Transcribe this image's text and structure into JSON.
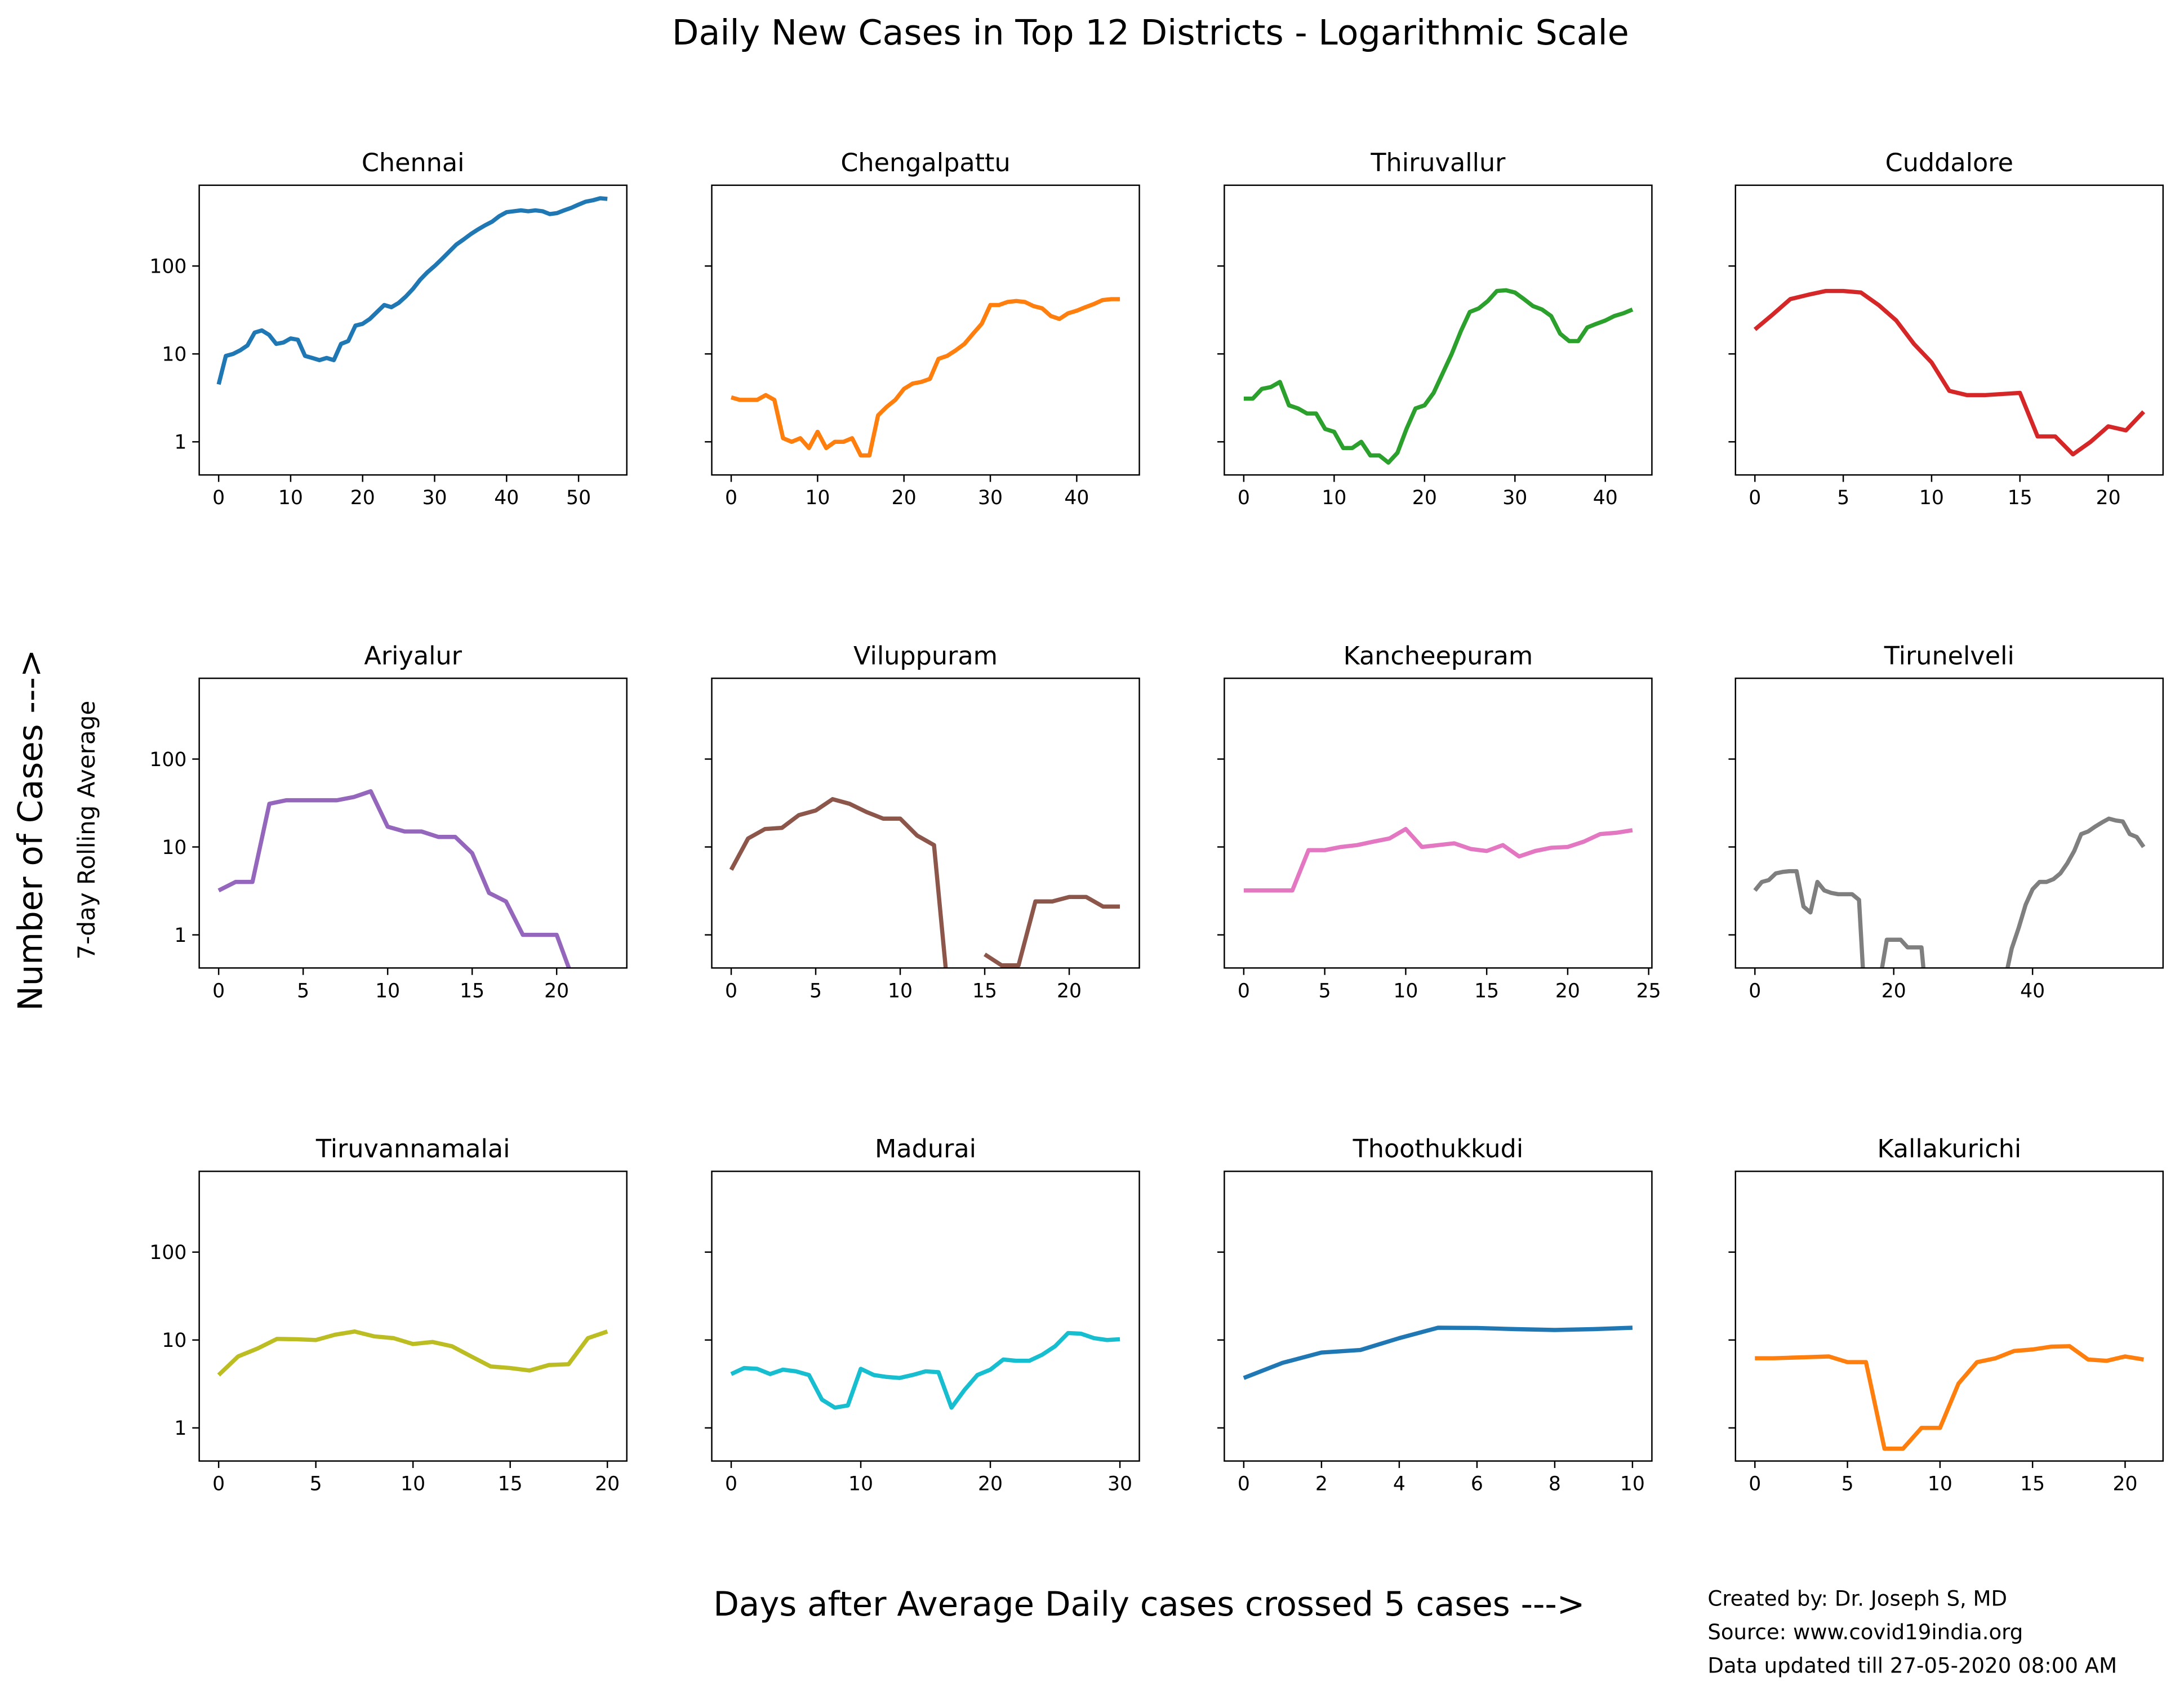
{
  "title": "Daily New Cases in Top 12 Districts - Logarithmic Scale",
  "ylabel": "Number of Cases --->",
  "ylabel2": "7-day Rolling Average",
  "xlabel": "Days after Average Daily cases crossed 5 cases --->",
  "notes": [
    "Created by: Dr. Joseph S, MD",
    "Source: www.covid19india.org",
    "Data updated till 27-05-2020 08:00 AM"
  ],
  "chart_data": [
    {
      "type": "line",
      "title": "Chennai",
      "color": "#1f77b4",
      "log_scale": true,
      "ytick_labels": true,
      "x": [
        0,
        1,
        2,
        3,
        4,
        5,
        6,
        7,
        8,
        9,
        10,
        11,
        12,
        13,
        14,
        15,
        16,
        17,
        18,
        19,
        20,
        21,
        22,
        23,
        24,
        25,
        26,
        27,
        28,
        29,
        30,
        31,
        32,
        33,
        34,
        35,
        36,
        37,
        38,
        39,
        40,
        41,
        42,
        43,
        44,
        45,
        46,
        47,
        48,
        49,
        50,
        51,
        52,
        53,
        54
      ],
      "values": [
        4.5,
        9.5,
        10,
        11,
        12.5,
        17.5,
        18.5,
        16.5,
        13,
        13.5,
        15,
        14.5,
        9.5,
        9,
        8.5,
        9,
        8.5,
        13,
        14,
        21,
        22,
        25,
        30,
        36,
        34,
        38,
        45,
        55,
        70,
        85,
        100,
        120,
        145,
        175,
        200,
        230,
        260,
        290,
        320,
        370,
        410,
        420,
        430,
        420,
        430,
        420,
        390,
        400,
        430,
        460,
        500,
        540,
        560,
        590,
        580
      ],
      "xlim": [
        -2.7,
        56.7
      ],
      "xticks": [
        0,
        10,
        20,
        30,
        40,
        50
      ],
      "ylim": [
        0.42,
        830
      ],
      "yticks": [
        1,
        10,
        100
      ]
    },
    {
      "type": "line",
      "title": "Chengalpattu",
      "color": "#ff7f0e",
      "log_scale": true,
      "ytick_labels": false,
      "x": [
        0,
        1,
        2,
        3,
        4,
        5,
        6,
        7,
        8,
        9,
        10,
        11,
        12,
        13,
        14,
        15,
        16,
        17,
        18,
        19,
        20,
        21,
        22,
        23,
        24,
        25,
        26,
        27,
        28,
        29,
        30,
        31,
        32,
        33,
        34,
        35,
        36,
        37,
        38,
        39,
        40,
        41,
        42,
        43,
        44,
        45
      ],
      "values": [
        3.2,
        3.0,
        3.0,
        3.0,
        3.4,
        3.0,
        1.1,
        1.0,
        1.1,
        0.85,
        1.3,
        0.85,
        1.0,
        1.0,
        1.1,
        0.7,
        0.7,
        2.0,
        2.5,
        3.0,
        4.0,
        4.6,
        4.8,
        5.2,
        8.8,
        9.5,
        11,
        13,
        17,
        22,
        36,
        36,
        39,
        40,
        39,
        35,
        33,
        27,
        25,
        29,
        31,
        34,
        37,
        41,
        42,
        42
      ],
      "xlim": [
        -2.25,
        47.25
      ],
      "xticks": [
        0,
        10,
        20,
        30,
        40
      ],
      "ylim": [
        0.42,
        830
      ],
      "yticks": [
        1,
        10,
        100
      ]
    },
    {
      "type": "line",
      "title": "Thiruvallur",
      "color": "#2ca02c",
      "log_scale": true,
      "ytick_labels": false,
      "x": [
        0,
        1,
        2,
        3,
        4,
        5,
        6,
        7,
        8,
        9,
        10,
        11,
        12,
        13,
        14,
        15,
        16,
        17,
        18,
        19,
        20,
        21,
        22,
        23,
        24,
        25,
        26,
        27,
        28,
        29,
        30,
        31,
        32,
        33,
        34,
        35,
        36,
        37,
        38,
        39,
        40,
        41,
        42,
        43
      ],
      "values": [
        3.1,
        3.1,
        4,
        4.2,
        4.8,
        2.6,
        2.4,
        2.1,
        2.1,
        1.4,
        1.3,
        0.85,
        0.85,
        1.0,
        0.7,
        0.7,
        0.58,
        0.75,
        1.4,
        2.4,
        2.6,
        3.6,
        6,
        10,
        18,
        30,
        33,
        40,
        52,
        53,
        50,
        42,
        35,
        32,
        27,
        17,
        14,
        14,
        20,
        22,
        24,
        27,
        29,
        32
      ],
      "xlim": [
        -2.15,
        45.15
      ],
      "xticks": [
        0,
        10,
        20,
        30,
        40
      ],
      "ylim": [
        0.42,
        830
      ],
      "yticks": [
        1,
        10,
        100
      ]
    },
    {
      "type": "line",
      "title": "Cuddalore",
      "color": "#d62728",
      "log_scale": true,
      "ytick_labels": false,
      "x": [
        0,
        1,
        2,
        3,
        4,
        5,
        6,
        7,
        8,
        9,
        10,
        11,
        12,
        13,
        14,
        15,
        16,
        17,
        18,
        19,
        20,
        21,
        22
      ],
      "values": [
        19,
        28,
        42,
        47,
        52,
        52,
        50,
        36,
        24,
        13,
        8,
        3.8,
        3.4,
        3.4,
        3.5,
        3.6,
        1.15,
        1.15,
        0.72,
        1.0,
        1.5,
        1.35,
        2.2
      ],
      "xlim": [
        -1.1,
        23.1
      ],
      "xticks": [
        0,
        5,
        10,
        15,
        20
      ],
      "ylim": [
        0.42,
        830
      ],
      "yticks": [
        1,
        10,
        100
      ]
    },
    {
      "type": "line",
      "title": "Ariyalur",
      "color": "#9467bd",
      "log_scale": true,
      "ytick_labels": true,
      "x": [
        0,
        1,
        2,
        3,
        4,
        5,
        6,
        7,
        8,
        9,
        10,
        11,
        12,
        13,
        14,
        15,
        16,
        17,
        18,
        19,
        20,
        21,
        22,
        23
      ],
      "values": [
        3.2,
        4.0,
        4.0,
        31,
        34,
        34,
        34,
        34,
        37,
        43,
        17,
        15,
        15,
        13,
        13,
        8.5,
        3.0,
        2.4,
        1.0,
        1.0,
        1.0,
        0.3,
        0.14,
        0.14
      ],
      "xlim": [
        -1.15,
        24.15
      ],
      "xticks": [
        0,
        5,
        10,
        15,
        20
      ],
      "ylim": [
        0.42,
        830
      ],
      "yticks": [
        1,
        10,
        100
      ]
    },
    {
      "type": "line",
      "title": "Viluppuram",
      "color": "#8c564b",
      "log_scale": true,
      "ytick_labels": false,
      "x": [
        0,
        1,
        2,
        3,
        4,
        5,
        6,
        7,
        8,
        9,
        10,
        11,
        12,
        13,
        14,
        15,
        16,
        17,
        18,
        19,
        20,
        21,
        22,
        23
      ],
      "values": [
        5.5,
        12.5,
        16,
        16.5,
        23,
        26,
        35,
        31,
        25,
        21,
        21,
        13.5,
        10.5,
        0.1,
        null,
        0.6,
        0.45,
        0.45,
        2.4,
        2.4,
        2.7,
        2.7,
        2.1,
        2.1
      ],
      "xlim": [
        -1.15,
        24.15
      ],
      "xticks": [
        0,
        5,
        10,
        15,
        20
      ],
      "ylim": [
        0.42,
        830
      ],
      "yticks": [
        1,
        10,
        100
      ]
    },
    {
      "type": "line",
      "title": "Kancheepuram",
      "color": "#e377c2",
      "log_scale": true,
      "ytick_labels": false,
      "x": [
        0,
        1,
        2,
        3,
        4,
        5,
        6,
        7,
        8,
        9,
        10,
        11,
        12,
        13,
        14,
        15,
        16,
        17,
        18,
        19,
        20,
        21,
        22,
        23,
        24
      ],
      "values": [
        3.2,
        3.2,
        3.2,
        3.2,
        9.2,
        9.2,
        10,
        10.5,
        11.5,
        12.5,
        16,
        10,
        10.5,
        11,
        9.5,
        9,
        10.5,
        7.8,
        9,
        9.8,
        10,
        11.5,
        14,
        14.5,
        15.5
      ],
      "xlim": [
        -1.2,
        25.2
      ],
      "xticks": [
        0,
        5,
        10,
        15,
        20,
        25
      ],
      "ylim": [
        0.42,
        830
      ],
      "yticks": [
        1,
        10,
        100
      ]
    },
    {
      "type": "line",
      "title": "Tirunelveli",
      "color": "#7f7f7f",
      "log_scale": true,
      "ytick_labels": false,
      "x": [
        0,
        1,
        2,
        3,
        4,
        5,
        6,
        7,
        8,
        9,
        10,
        11,
        12,
        13,
        14,
        15,
        16,
        17,
        18,
        19,
        20,
        21,
        22,
        23,
        24,
        25,
        26,
        27,
        28,
        29,
        30,
        31,
        32,
        33,
        34,
        35,
        36,
        37,
        38,
        39,
        40,
        41,
        42,
        43,
        44,
        45,
        46,
        47,
        48,
        49,
        50,
        51,
        52,
        53,
        54,
        55,
        56
      ],
      "values": [
        3.2,
        4,
        4.2,
        5,
        5.2,
        5.3,
        5.3,
        2.1,
        1.8,
        4,
        3.2,
        3,
        2.9,
        2.9,
        2.9,
        2.5,
        0.1,
        null,
        0.3,
        0.88,
        0.88,
        0.88,
        0.72,
        0.72,
        0.72,
        0.1,
        null,
        null,
        null,
        null,
        null,
        null,
        null,
        null,
        null,
        null,
        0.3,
        0.7,
        1.2,
        2.2,
        3.3,
        4.0,
        4.0,
        4.3,
        5,
        6.5,
        9,
        14,
        15,
        17,
        19,
        21,
        20,
        19.5,
        14,
        13,
        10
      ],
      "xlim": [
        -2.8,
        58.8
      ],
      "xticks": [
        0,
        20,
        40
      ],
      "ylim": [
        0.42,
        830
      ],
      "yticks": [
        1,
        10,
        100
      ]
    },
    {
      "type": "line",
      "title": "Tiruvannamalai",
      "color": "#bcbd22",
      "log_scale": true,
      "ytick_labels": true,
      "x": [
        0,
        1,
        2,
        3,
        4,
        5,
        6,
        7,
        8,
        9,
        10,
        11,
        12,
        13,
        14,
        15,
        16,
        17,
        18,
        19,
        20
      ],
      "values": [
        4,
        6.5,
        8,
        10.3,
        10.2,
        10,
        11.5,
        12.5,
        11,
        10.5,
        9,
        9.5,
        8.5,
        6.5,
        5,
        4.8,
        4.5,
        5.2,
        5.3,
        10.5,
        12.5
      ],
      "xlim": [
        -1.0,
        21.0
      ],
      "xticks": [
        0,
        5,
        10,
        15,
        20
      ],
      "ylim": [
        0.42,
        830
      ],
      "yticks": [
        1,
        10,
        100
      ]
    },
    {
      "type": "line",
      "title": "Madurai",
      "color": "#17becf",
      "log_scale": true,
      "ytick_labels": false,
      "x": [
        0,
        1,
        2,
        3,
        4,
        5,
        6,
        7,
        8,
        9,
        10,
        11,
        12,
        13,
        14,
        15,
        16,
        17,
        18,
        19,
        20,
        21,
        22,
        23,
        24,
        25,
        26,
        27,
        28,
        29,
        30
      ],
      "values": [
        4.1,
        4.8,
        4.7,
        4.1,
        4.6,
        4.4,
        4.0,
        2.1,
        1.7,
        1.8,
        4.7,
        4.0,
        3.8,
        3.7,
        4.0,
        4.4,
        4.3,
        1.7,
        2.7,
        4.0,
        4.6,
        6.0,
        5.8,
        5.8,
        6.8,
        8.5,
        12,
        11.8,
        10.5,
        10,
        10.2
      ],
      "xlim": [
        -1.5,
        31.5
      ],
      "xticks": [
        0,
        10,
        20,
        30
      ],
      "ylim": [
        0.42,
        830
      ],
      "yticks": [
        1,
        10,
        100
      ]
    },
    {
      "type": "line",
      "title": "Thoothukkudi",
      "color": "#1f77b4",
      "log_scale": true,
      "ytick_labels": false,
      "x": [
        0,
        1,
        2,
        3,
        4,
        5,
        6,
        7,
        8,
        9,
        10
      ],
      "values": [
        3.7,
        5.5,
        7.2,
        7.7,
        10.5,
        13.8,
        13.7,
        13.3,
        13.0,
        13.3,
        13.8
      ],
      "xlim": [
        -0.5,
        10.5
      ],
      "xticks": [
        0,
        2,
        4,
        6,
        8,
        10
      ],
      "ylim": [
        0.42,
        830
      ],
      "yticks": [
        1,
        10,
        100
      ]
    },
    {
      "type": "line",
      "title": "Kallakurichi",
      "color": "#ff7f0e",
      "log_scale": true,
      "ytick_labels": false,
      "x": [
        0,
        1,
        2,
        3,
        4,
        5,
        6,
        7,
        8,
        9,
        10,
        11,
        12,
        13,
        14,
        15,
        16,
        17,
        18,
        19,
        20,
        21
      ],
      "values": [
        6.2,
        6.2,
        6.3,
        6.4,
        6.5,
        5.6,
        5.6,
        0.58,
        0.58,
        1.0,
        1.0,
        3.2,
        5.6,
        6.2,
        7.5,
        7.8,
        8.4,
        8.5,
        6.0,
        5.8,
        6.5,
        6.0
      ],
      "xlim": [
        -1.05,
        22.05
      ],
      "xticks": [
        0,
        5,
        10,
        15,
        20
      ],
      "ylim": [
        0.42,
        830
      ],
      "yticks": [
        1,
        10,
        100
      ]
    }
  ]
}
